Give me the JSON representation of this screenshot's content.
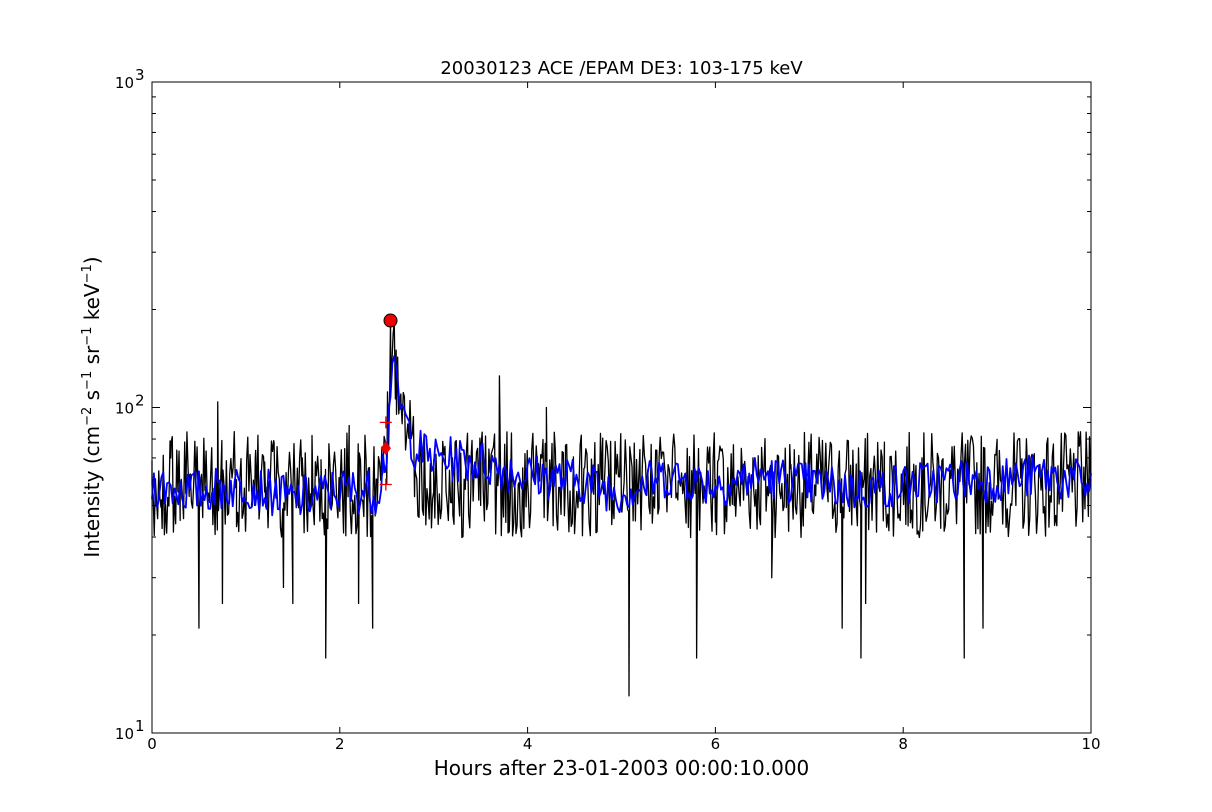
{
  "chart_data": {
    "type": "line",
    "title": "20030123 ACE /EPAM DE3: 103-175 keV",
    "xlabel": "Hours after 23-01-2003 00:00:10.000",
    "ylabel": {
      "prefix": "Intensity (cm",
      "exp1": "−2",
      "s": " s",
      "exp2": "−1",
      "sr": " sr",
      "exp3": "−1",
      "kev": " keV",
      "exp4": "−1",
      "suffix": ")"
    },
    "xlim": [
      0,
      10
    ],
    "ylim": [
      10,
      1000
    ],
    "yscale": "log",
    "grid": false,
    "x_ticks": [
      {
        "value": 0,
        "label": "0"
      },
      {
        "value": 2,
        "label": "2"
      },
      {
        "value": 4,
        "label": "4"
      },
      {
        "value": 6,
        "label": "6"
      },
      {
        "value": 8,
        "label": "8"
      },
      {
        "value": 10,
        "label": "10"
      }
    ],
    "y_ticks": [
      {
        "value": 10,
        "base": "10",
        "exp": "1"
      },
      {
        "value": 100,
        "base": "10",
        "exp": "2"
      },
      {
        "value": 1000,
        "base": "10",
        "exp": "3"
      }
    ],
    "series": [
      {
        "style": "raw",
        "color": "#000000",
        "description_points": [
          [
            0.0,
            58
          ],
          [
            0.1,
            52
          ],
          [
            0.2,
            70
          ],
          [
            0.3,
            45
          ],
          [
            0.4,
            62
          ],
          [
            0.5,
            21
          ],
          [
            0.55,
            75
          ],
          [
            0.7,
            104
          ],
          [
            0.75,
            25
          ],
          [
            0.9,
            60
          ],
          [
            1.0,
            45
          ],
          [
            1.1,
            70
          ],
          [
            1.2,
            55
          ],
          [
            1.3,
            78
          ],
          [
            1.4,
            28
          ],
          [
            1.5,
            25
          ],
          [
            1.6,
            70
          ],
          [
            1.7,
            50
          ],
          [
            1.8,
            60
          ],
          [
            1.85,
            17
          ],
          [
            1.9,
            62
          ],
          [
            2.0,
            48
          ],
          [
            2.1,
            88
          ],
          [
            2.2,
            25
          ],
          [
            2.3,
            55
          ],
          [
            2.35,
            21
          ],
          [
            2.4,
            60
          ],
          [
            2.45,
            62
          ],
          [
            2.5,
            58
          ],
          [
            2.54,
            185
          ],
          [
            2.6,
            150
          ],
          [
            2.65,
            110
          ],
          [
            2.7,
            75
          ],
          [
            2.8,
            65
          ],
          [
            2.9,
            80
          ],
          [
            3.0,
            55
          ],
          [
            3.2,
            70
          ],
          [
            3.4,
            72
          ],
          [
            3.5,
            50
          ],
          [
            3.7,
            125
          ],
          [
            3.8,
            55
          ],
          [
            4.0,
            60
          ],
          [
            4.2,
            100
          ],
          [
            4.4,
            55
          ],
          [
            4.6,
            65
          ],
          [
            4.8,
            58
          ],
          [
            5.0,
            48
          ],
          [
            5.08,
            13
          ],
          [
            5.2,
            55
          ],
          [
            5.4,
            70
          ],
          [
            5.6,
            52
          ],
          [
            5.8,
            17
          ],
          [
            6.0,
            60
          ],
          [
            6.2,
            50
          ],
          [
            6.4,
            70
          ],
          [
            6.6,
            30
          ],
          [
            6.8,
            65
          ],
          [
            7.0,
            55
          ],
          [
            7.2,
            62
          ],
          [
            7.35,
            21
          ],
          [
            7.5,
            50
          ],
          [
            7.55,
            17
          ],
          [
            7.6,
            25
          ],
          [
            7.8,
            60
          ],
          [
            8.0,
            55
          ],
          [
            8.2,
            70
          ],
          [
            8.4,
            50
          ],
          [
            8.6,
            65
          ],
          [
            8.65,
            17
          ],
          [
            8.8,
            55
          ],
          [
            8.85,
            21
          ],
          [
            9.0,
            70
          ],
          [
            9.2,
            50
          ],
          [
            9.4,
            60
          ],
          [
            9.6,
            75
          ],
          [
            9.8,
            55
          ],
          [
            10.0,
            60
          ]
        ]
      },
      {
        "style": "smoothed",
        "color": "#0000ff",
        "description_points": [
          [
            0.0,
            58
          ],
          [
            0.5,
            55
          ],
          [
            1.0,
            58
          ],
          [
            1.5,
            52
          ],
          [
            2.0,
            56
          ],
          [
            2.4,
            55
          ],
          [
            2.5,
            75
          ],
          [
            2.55,
            135
          ],
          [
            2.65,
            100
          ],
          [
            2.8,
            75
          ],
          [
            3.0,
            70
          ],
          [
            3.5,
            68
          ],
          [
            4.0,
            62
          ],
          [
            4.5,
            60
          ],
          [
            5.0,
            55
          ],
          [
            5.5,
            62
          ],
          [
            6.0,
            58
          ],
          [
            6.5,
            62
          ],
          [
            7.0,
            58
          ],
          [
            7.5,
            56
          ],
          [
            8.0,
            58
          ],
          [
            8.5,
            60
          ],
          [
            9.0,
            60
          ],
          [
            9.5,
            62
          ],
          [
            10.0,
            58
          ]
        ]
      }
    ],
    "markers": [
      {
        "shape": "circle",
        "color": "#ee0000",
        "x": 2.54,
        "y": 185
      },
      {
        "shape": "diamond",
        "color": "#ee0000",
        "x": 2.49,
        "y": 75
      },
      {
        "shape": "plus",
        "color": "#ee0000",
        "x": 2.49,
        "y": 90
      },
      {
        "shape": "plus",
        "color": "#ee0000",
        "x": 2.49,
        "y": 58
      }
    ]
  }
}
